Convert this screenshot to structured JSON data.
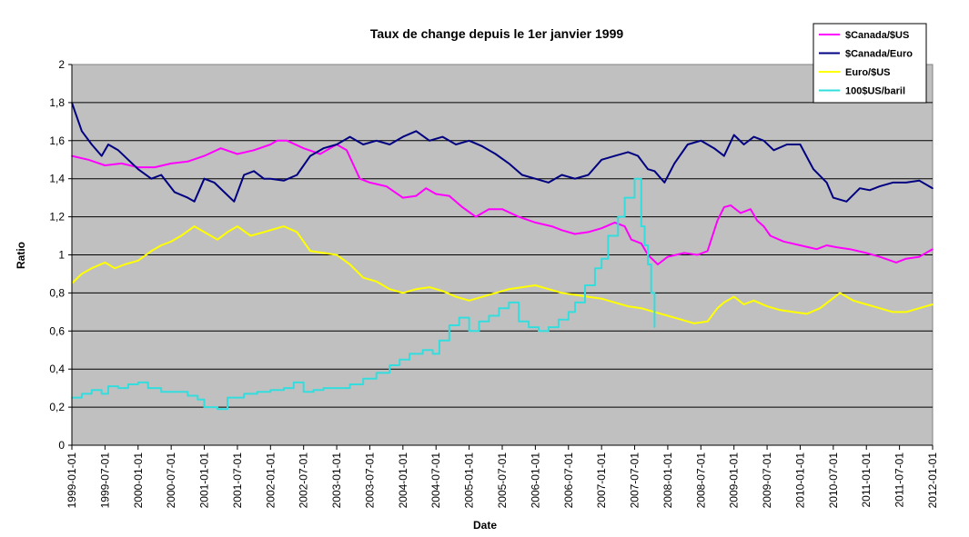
{
  "chart_data": {
    "type": "line",
    "title": "Taux de change depuis le 1er janvier 1999",
    "xlabel": "Date",
    "ylabel": "Ratio",
    "ylim": [
      0,
      2
    ],
    "yticks": [
      "0",
      "0,2",
      "0,4",
      "0,6",
      "0,8",
      "1",
      "1,2",
      "1,4",
      "1,6",
      "1,8",
      "2"
    ],
    "xticks": [
      "1999-01-01",
      "1999-07-01",
      "2000-01-01",
      "2000-07-01",
      "2001-01-01",
      "2001-07-01",
      "2002-01-01",
      "2002-07-01",
      "2003-01-01",
      "2003-07-01",
      "2004-01-01",
      "2004-07-01",
      "2005-01-01",
      "2005-07-01",
      "2006-01-01",
      "2006-07-01",
      "2007-01-01",
      "2007-07-01",
      "2008-01-01",
      "2008-07-01",
      "2009-01-01",
      "2009-07-01",
      "2010-01-01",
      "2010-07-01",
      "2011-01-01",
      "2011-07-01",
      "2012-01-01"
    ],
    "xlim": [
      1999.0,
      2012.0
    ],
    "grid": true,
    "legend_position": "top-right",
    "series": [
      {
        "name": "$Canada/$US",
        "color": "#ff00ff",
        "x": [
          1999.0,
          1999.25,
          1999.5,
          1999.75,
          2000.0,
          2000.25,
          2000.5,
          2000.75,
          2001.0,
          2001.25,
          2001.5,
          2001.75,
          2002.0,
          2002.1,
          2002.25,
          2002.5,
          2002.75,
          2003.0,
          2003.15,
          2003.35,
          2003.5,
          2003.75,
          2004.0,
          2004.2,
          2004.35,
          2004.5,
          2004.7,
          2004.9,
          2005.1,
          2005.3,
          2005.5,
          2005.75,
          2006.0,
          2006.25,
          2006.4,
          2006.6,
          2006.8,
          2007.0,
          2007.2,
          2007.35,
          2007.45,
          2007.6,
          2007.7,
          2007.85,
          2008.0,
          2008.25,
          2008.45,
          2008.6,
          2008.75,
          2008.85,
          2008.95,
          2009.1,
          2009.25,
          2009.35,
          2009.45,
          2009.55,
          2009.75,
          2010.0,
          2010.25,
          2010.4,
          2010.55,
          2010.75,
          2011.0,
          2011.2,
          2011.45,
          2011.6,
          2011.8,
          2011.9,
          2012.0
        ],
        "values": [
          1.52,
          1.5,
          1.47,
          1.48,
          1.46,
          1.46,
          1.48,
          1.49,
          1.52,
          1.56,
          1.53,
          1.55,
          1.58,
          1.6,
          1.6,
          1.56,
          1.53,
          1.58,
          1.55,
          1.4,
          1.38,
          1.36,
          1.3,
          1.31,
          1.35,
          1.32,
          1.31,
          1.25,
          1.2,
          1.24,
          1.24,
          1.2,
          1.17,
          1.15,
          1.13,
          1.11,
          1.12,
          1.14,
          1.17,
          1.15,
          1.08,
          1.06,
          1.0,
          0.95,
          0.99,
          1.01,
          1.0,
          1.02,
          1.18,
          1.25,
          1.26,
          1.22,
          1.24,
          1.18,
          1.15,
          1.1,
          1.07,
          1.05,
          1.03,
          1.05,
          1.04,
          1.03,
          1.01,
          0.99,
          0.96,
          0.98,
          0.99,
          1.01,
          1.03
        ]
      },
      {
        "name": "$Canada/Euro",
        "color": "#000080",
        "x": [
          1999.0,
          1999.05,
          1999.15,
          1999.3,
          1999.45,
          1999.55,
          1999.7,
          1999.85,
          2000.0,
          2000.2,
          2000.35,
          2000.55,
          2000.75,
          2000.85,
          2001.0,
          2001.15,
          2001.3,
          2001.45,
          2001.6,
          2001.75,
          2001.9,
          2002.0,
          2002.2,
          2002.4,
          2002.6,
          2002.8,
          2003.0,
          2003.2,
          2003.4,
          2003.6,
          2003.8,
          2004.0,
          2004.2,
          2004.4,
          2004.6,
          2004.8,
          2005.0,
          2005.2,
          2005.4,
          2005.6,
          2005.8,
          2006.0,
          2006.2,
          2006.4,
          2006.6,
          2006.8,
          2007.0,
          2007.2,
          2007.4,
          2007.55,
          2007.7,
          2007.8,
          2007.95,
          2008.1,
          2008.3,
          2008.5,
          2008.7,
          2008.85,
          2009.0,
          2009.15,
          2009.3,
          2009.45,
          2009.6,
          2009.8,
          2010.0,
          2010.2,
          2010.4,
          2010.5,
          2010.7,
          2010.9,
          2011.05,
          2011.2,
          2011.4,
          2011.6,
          2011.8,
          2012.0
        ],
        "values": [
          1.8,
          1.75,
          1.65,
          1.58,
          1.52,
          1.58,
          1.55,
          1.5,
          1.45,
          1.4,
          1.42,
          1.33,
          1.3,
          1.28,
          1.4,
          1.38,
          1.33,
          1.28,
          1.42,
          1.44,
          1.4,
          1.4,
          1.39,
          1.42,
          1.52,
          1.56,
          1.58,
          1.62,
          1.58,
          1.6,
          1.58,
          1.62,
          1.65,
          1.6,
          1.62,
          1.58,
          1.6,
          1.57,
          1.53,
          1.48,
          1.42,
          1.4,
          1.38,
          1.42,
          1.4,
          1.42,
          1.5,
          1.52,
          1.54,
          1.52,
          1.45,
          1.44,
          1.38,
          1.48,
          1.58,
          1.6,
          1.56,
          1.52,
          1.63,
          1.58,
          1.62,
          1.6,
          1.55,
          1.58,
          1.58,
          1.45,
          1.38,
          1.3,
          1.28,
          1.35,
          1.34,
          1.36,
          1.38,
          1.38,
          1.39,
          1.35
        ]
      },
      {
        "name": "Euro/$US",
        "color": "#ffff00",
        "x": [
          1999.0,
          1999.15,
          1999.3,
          1999.5,
          1999.65,
          1999.8,
          2000.0,
          2000.2,
          2000.35,
          2000.5,
          2000.65,
          2000.85,
          2001.0,
          2001.2,
          2001.35,
          2001.5,
          2001.7,
          2001.9,
          2002.0,
          2002.2,
          2002.4,
          2002.6,
          2003.0,
          2003.2,
          2003.4,
          2003.6,
          2003.8,
          2004.0,
          2004.2,
          2004.4,
          2004.6,
          2004.8,
          2005.0,
          2005.2,
          2005.4,
          2005.6,
          2005.8,
          2006.0,
          2006.2,
          2006.4,
          2006.6,
          2006.8,
          2007.0,
          2007.2,
          2007.4,
          2007.6,
          2007.8,
          2008.0,
          2008.2,
          2008.4,
          2008.6,
          2008.75,
          2008.85,
          2009.0,
          2009.15,
          2009.3,
          2009.5,
          2009.7,
          2009.9,
          2010.1,
          2010.3,
          2010.45,
          2010.6,
          2010.8,
          2011.0,
          2011.2,
          2011.4,
          2011.6,
          2011.8,
          2012.0
        ],
        "values": [
          0.85,
          0.9,
          0.93,
          0.96,
          0.93,
          0.95,
          0.97,
          1.02,
          1.05,
          1.07,
          1.1,
          1.15,
          1.12,
          1.08,
          1.12,
          1.15,
          1.1,
          1.12,
          1.13,
          1.15,
          1.12,
          1.02,
          1.0,
          0.95,
          0.88,
          0.86,
          0.82,
          0.8,
          0.82,
          0.83,
          0.81,
          0.78,
          0.76,
          0.78,
          0.8,
          0.82,
          0.83,
          0.84,
          0.82,
          0.8,
          0.79,
          0.78,
          0.77,
          0.75,
          0.73,
          0.72,
          0.7,
          0.68,
          0.66,
          0.64,
          0.65,
          0.72,
          0.75,
          0.78,
          0.74,
          0.76,
          0.73,
          0.71,
          0.7,
          0.69,
          0.72,
          0.76,
          0.8,
          0.76,
          0.74,
          0.72,
          0.7,
          0.7,
          0.72,
          0.74
        ]
      },
      {
        "name": "100$US/baril",
        "color": "#33dddd",
        "x": [
          1999.0,
          1999.15,
          1999.3,
          1999.45,
          1999.55,
          1999.7,
          1999.85,
          2000.0,
          2000.15,
          2000.35,
          2000.55,
          2000.75,
          2000.9,
          2001.0,
          2001.2,
          2001.35,
          2001.6,
          2001.8,
          2002.0,
          2002.2,
          2002.35,
          2002.5,
          2002.65,
          2002.8,
          2003.0,
          2003.2,
          2003.4,
          2003.6,
          2003.8,
          2003.95,
          2004.1,
          2004.3,
          2004.45,
          2004.55,
          2004.7,
          2004.85,
          2005.0,
          2005.15,
          2005.3,
          2005.45,
          2005.6,
          2005.75,
          2005.9,
          2006.05,
          2006.2,
          2006.35,
          2006.5,
          2006.6,
          2006.75,
          2006.9,
          2007.0,
          2007.1,
          2007.25,
          2007.35,
          2007.5,
          2007.6,
          2007.65,
          2007.7,
          2007.75,
          2007.8
        ],
        "values": [
          0.25,
          0.27,
          0.29,
          0.27,
          0.31,
          0.3,
          0.32,
          0.33,
          0.3,
          0.28,
          0.28,
          0.26,
          0.24,
          0.2,
          0.19,
          0.25,
          0.27,
          0.28,
          0.29,
          0.3,
          0.33,
          0.28,
          0.29,
          0.3,
          0.3,
          0.32,
          0.35,
          0.38,
          0.42,
          0.45,
          0.48,
          0.5,
          0.48,
          0.55,
          0.63,
          0.67,
          0.6,
          0.65,
          0.68,
          0.72,
          0.75,
          0.65,
          0.62,
          0.6,
          0.62,
          0.66,
          0.7,
          0.75,
          0.84,
          0.93,
          0.98,
          1.1,
          1.2,
          1.3,
          1.4,
          1.15,
          1.05,
          0.95,
          0.8,
          0.62
        ]
      }
    ]
  }
}
